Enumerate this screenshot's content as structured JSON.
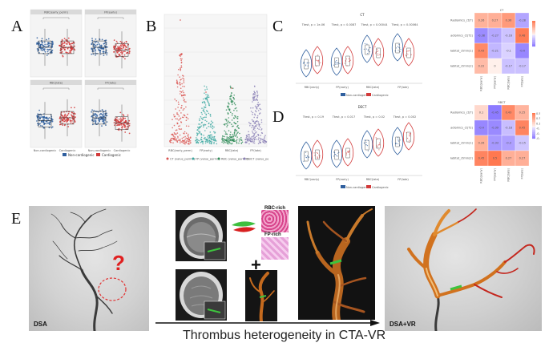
{
  "panels": {
    "A": {
      "letter": "A",
      "subplots": [
        {
          "title": "RBC(early_perm)",
          "id": "rbc_early"
        },
        {
          "title": "FP(early)",
          "id": "fp_early"
        },
        {
          "title": "RBC(late)",
          "id": "rbc_late"
        },
        {
          "title": "FP(late)",
          "id": "fp_late"
        }
      ],
      "group_labels": [
        "Non-cardiogenic",
        "Cardiogenic"
      ],
      "legend": [
        "Non-cardiogenic",
        "Cardiogenic"
      ],
      "colors": {
        "noncardio": "#2f5f9e",
        "cardio": "#d23a3a"
      }
    },
    "B": {
      "letter": "B",
      "x_labels": [
        "RBC(early_perm)",
        "FP(early)",
        "RBC(late)",
        "FP(late)"
      ],
      "legend": [
        "CT (value_perm1)",
        "FP (value_perm2)",
        "RBC (value_perm3)",
        "RBCT (value_perm4)"
      ],
      "colors": [
        "#d9534f",
        "#3ba7a0",
        "#2e8b57",
        "#8a7fb5"
      ]
    },
    "C": {
      "letter": "C",
      "title": "CT",
      "tests": [
        "Ttest, p = 1e-06",
        "Ttest, p = 0.0087",
        "Ttest, p = 0.00044",
        "Ttest, p = 0.00064"
      ],
      "x_labels": [
        "RBC(early)",
        "FP(early)",
        "RBC(late)",
        "FP(late)"
      ],
      "legend": [
        "Non-cardiogenic",
        "Cardiogenic"
      ],
      "heatmap_title": "CT",
      "heatmap_rows": [
        "Radiomics_ct(T)",
        "Radiomics_ct(T2)",
        "Habitat_ctmm(1)",
        "Habitat_ctmm(2)"
      ],
      "heatmap_cols": [
        "RBC(early)",
        "FP(early)",
        "RBC(late)",
        "FP(late)"
      ],
      "heatmap_values": [
        [
          0.26,
          0.27,
          0.36,
          -0.28
        ],
        [
          -0.38,
          -0.27,
          -0.16,
          0.48
        ],
        [
          0.43,
          -0.21,
          -0.1,
          -0.4
        ],
        [
          0.22,
          0.0,
          -0.17,
          -0.17
        ]
      ]
    },
    "D": {
      "letter": "D",
      "title": "DECT",
      "tests": [
        "Ttest, p = 0.19",
        "Ttest, p = 0.017",
        "Ttest, p = 0.02",
        "Ttest, p = 0.002"
      ],
      "x_labels": [
        "RBC(early)",
        "FP(early)",
        "RBC(late)",
        "FP(late)"
      ],
      "legend": [
        "Non-cardiogenic",
        "Cardiogenic"
      ],
      "heatmap_title": "RBCT",
      "heatmap_rows": [
        "Radiomics_ct(T)",
        "Radiomics_ct(T2)",
        "Habitat_ctmm(1)",
        "Habitat_ctmm(2)"
      ],
      "heatmap_cols": [
        "RBC(early)",
        "FP(early)",
        "RBC(late)",
        "FP(late)"
      ],
      "heatmap_values": [
        [
          0.1,
          -0.45,
          0.43,
          0.25
        ],
        [
          -0.4,
          -0.39,
          -0.18,
          0.45
        ],
        [
          0.26,
          -0.33,
          -0.3,
          -0.15
        ],
        [
          0.45,
          0.5,
          0.27,
          0.27
        ]
      ],
      "scale_ticks": [
        "0.5",
        "0.3",
        "0.1",
        "-0.1",
        "-0.3",
        "-0.5"
      ]
    },
    "E": {
      "letter": "E",
      "question_mark": "?",
      "dsa_label": "DSA",
      "rbc_rich": "RBC-rich",
      "fp_rich": "FP-rich",
      "plus": "+",
      "caption": "Thrombus heterogeneity in CTA-VR",
      "dsa_vr_label": "DSA+VR"
    }
  }
}
